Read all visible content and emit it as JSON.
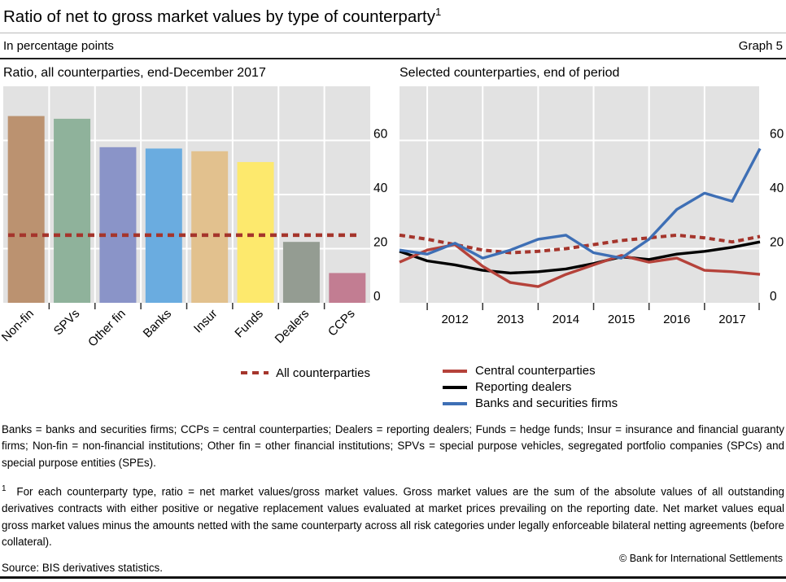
{
  "header": {
    "title": "Ratio of net to gross market values by type of counterparty",
    "title_superscript": "1",
    "subtitle_left": "In percentage points",
    "subtitle_right": "Graph 5"
  },
  "chart_data": [
    {
      "type": "bar",
      "title": "Ratio, all counterparties, end-December 2017",
      "categories": [
        "Non-fin",
        "SPVs",
        "Other fin",
        "Banks",
        "Insur",
        "Funds",
        "Dealers",
        "CCPs"
      ],
      "values": [
        69,
        68,
        57.5,
        57,
        56,
        52,
        22.5,
        11
      ],
      "bar_colors": [
        "#bb9270",
        "#8fb29b",
        "#8a94c8",
        "#6aace0",
        "#e2c18e",
        "#fde96d",
        "#949c92",
        "#c27d92"
      ],
      "reference_line": {
        "label": "All counterparties",
        "value": 25,
        "color": "#a5352c",
        "style": "dashed"
      },
      "ylabel": "",
      "xlabel": "",
      "ylim": [
        0,
        80
      ],
      "yticks": [
        0,
        20,
        40,
        60
      ],
      "plot_background": "#e2e2e2",
      "gridline_color": "#ffffff",
      "legend_position": "bottom-right"
    },
    {
      "type": "line",
      "title": "Selected counterparties, end of period",
      "x": [
        "2011-H1",
        "2011-H2",
        "2012-H1",
        "2012-H2",
        "2013-H1",
        "2013-H2",
        "2014-H1",
        "2014-H2",
        "2015-H1",
        "2015-H2",
        "2016-H1",
        "2016-H2",
        "2017-H1",
        "2017-H2"
      ],
      "x_tick_labels": [
        "2012",
        "2013",
        "2014",
        "2015",
        "2016",
        "2017"
      ],
      "series": [
        {
          "name": "All counterparties",
          "style": "dashed",
          "color": "#a5352c",
          "values": [
            25,
            23.5,
            21.5,
            19.5,
            18.5,
            19,
            20,
            21.5,
            23,
            24,
            25,
            24,
            22.5,
            24.5
          ]
        },
        {
          "name": "Reporting dealers",
          "style": "solid",
          "color": "#000000",
          "values": [
            19,
            15.5,
            14,
            12,
            11,
            11.5,
            12.5,
            14.5,
            17,
            16,
            18,
            19,
            20.5,
            22.5
          ]
        },
        {
          "name": "Central counterparties",
          "style": "solid",
          "color": "#b5423a",
          "values": [
            15,
            19.5,
            21.5,
            13.5,
            7.5,
            6,
            10.5,
            14,
            17.5,
            15,
            16.5,
            12,
            11.5,
            10.5
          ]
        },
        {
          "name": "Banks and securities firms",
          "style": "solid",
          "color": "#3e6fb5",
          "values": [
            19.5,
            18,
            22,
            16.5,
            19.5,
            23.5,
            25,
            18.5,
            16.5,
            23.5,
            34.5,
            40.5,
            37.5,
            57
          ]
        }
      ],
      "ylabel": "",
      "xlabel": "",
      "ylim": [
        0,
        80
      ],
      "yticks": [
        0,
        20,
        40,
        60
      ],
      "plot_background": "#e2e2e2",
      "gridline_color": "#ffffff",
      "legend_position": "bottom-left"
    }
  ],
  "footnotes": {
    "definitions": "Banks = banks and securities firms; CCPs = central counterparties; Dealers = reporting dealers; Funds = hedge funds; Insur = insurance and financial guaranty firms; Non-fin = non-financial institutions; Other fin = other financial institutions; SPVs = special purpose vehicles, segregated portfolio companies (SPCs) and special purpose entities (SPEs).",
    "marker": "1",
    "footnote1": "For each counterparty type, ratio = net market values/gross market values. Gross market values are the sum of the absolute values of all outstanding derivatives contracts with either positive or negative replacement values evaluated at market prices prevailing on the reporting date. Net market values equal gross market values minus the amounts netted with the same counterparty across all risk categories under legally enforceable bilateral netting agreements (before collateral).",
    "source": "Source: BIS derivatives statistics."
  },
  "footer": {
    "copyright": "© Bank for International Settlements"
  }
}
